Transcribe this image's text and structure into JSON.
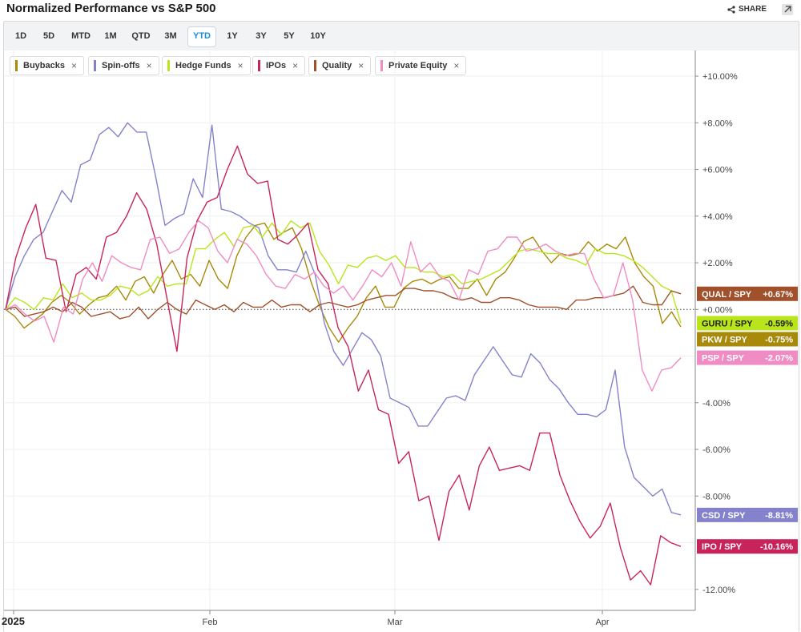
{
  "header": {
    "title": "Normalized Performance vs S&P 500",
    "share_label": "SHARE"
  },
  "ranges": [
    "1D",
    "5D",
    "MTD",
    "1M",
    "QTD",
    "3M",
    "YTD",
    "1Y",
    "3Y",
    "5Y",
    "10Y"
  ],
  "active_range": "YTD",
  "colors": {
    "buybacks": "#a8890a",
    "spinoffs": "#8482cc",
    "hedge": "#b8e61b",
    "ipos": "#c8245b",
    "quality": "#a0502a",
    "pe": "#f08cc4"
  },
  "chart_data": {
    "type": "line",
    "x_labels": [
      "2025",
      "Feb",
      "Mar",
      "Apr"
    ],
    "y_ticks": [
      "+10.00%",
      "+8.00%",
      "+6.00%",
      "+4.00%",
      "+2.00%",
      "+0.00%",
      "-4.00%",
      "-6.00%",
      "-8.00%",
      "-12.00%"
    ],
    "y_tick_values": [
      10,
      8,
      6,
      4,
      2,
      0,
      -4,
      -6,
      -8,
      -12
    ],
    "ylim": [
      -12.9,
      11.1
    ],
    "grid": true,
    "zero_line": "dotted",
    "series": [
      {
        "name": "Buybacks",
        "key": "buybacks",
        "tag": "PKW / SPY",
        "last_label": "-0.75%",
        "values": [
          0,
          -0.3,
          -0.8,
          -0.5,
          -0.2,
          0.3,
          0.6,
          0.3,
          -0.2,
          0.2,
          0.5,
          0.6,
          1.0,
          0.4,
          1.2,
          1.4,
          0.7,
          1.5,
          2.1,
          1.3,
          1.5,
          1.0,
          2.1,
          1.3,
          0.9,
          2.3,
          3.1,
          3.6,
          3.7,
          3.0,
          3.3,
          3.5,
          2.6,
          1.2,
          0.1,
          -0.8,
          -1.4,
          -0.8,
          -0.3,
          0.5,
          1.0,
          0.1,
          0.1,
          0.9,
          1.2,
          1.3,
          1.1,
          1.3,
          1.4,
          0.9,
          0.9,
          1.3,
          0.6,
          1.3,
          1.6,
          2.2,
          2.9,
          3.1,
          2.5,
          2.0,
          2.4,
          2.3,
          2.4,
          2.9,
          2.5,
          2.8,
          2.6,
          3.1,
          2.0,
          1.4,
          1.0,
          -0.6,
          -0.1,
          -0.75
        ]
      },
      {
        "name": "Spin-offs",
        "key": "spinoffs",
        "tag": "CSD / SPY",
        "last_label": "-8.81%",
        "values": [
          0,
          1.4,
          2.3,
          3.0,
          3.3,
          4.2,
          5.1,
          4.6,
          6.2,
          6.4,
          7.5,
          7.8,
          7.4,
          8.0,
          7.6,
          7.6,
          5.7,
          3.6,
          3.9,
          4.1,
          5.6,
          4.8,
          7.9,
          4.3,
          4.2,
          4.0,
          3.7,
          3.5,
          2.3,
          1.7,
          1.7,
          1.6,
          2.5,
          1.5,
          -0.6,
          -1.8,
          -2.4,
          -1.7,
          -1.0,
          -1.3,
          -2.0,
          -3.8,
          -4.0,
          -4.2,
          -5.0,
          -5.0,
          -4.4,
          -3.8,
          -3.7,
          -3.9,
          -2.8,
          -2.2,
          -1.6,
          -2.2,
          -2.8,
          -2.9,
          -1.9,
          -2.3,
          -3.0,
          -3.4,
          -4.0,
          -4.5,
          -4.5,
          -4.6,
          -4.3,
          -2.6,
          -5.9,
          -7.2,
          -7.6,
          -8.0,
          -7.7,
          -8.7,
          -8.81
        ]
      },
      {
        "name": "Hedge Funds",
        "key": "hedge",
        "tag": "GURU / SPY",
        "last_label": "-0.59%",
        "values": [
          0,
          0.5,
          0.3,
          0.0,
          0.5,
          0.4,
          1.1,
          0.5,
          0.7,
          0.4,
          0.4,
          0.6,
          1.0,
          0.9,
          0.6,
          0.8,
          1.4,
          1.0,
          1.1,
          1.1,
          2.6,
          2.6,
          3.0,
          3.3,
          2.7,
          3.5,
          3.6,
          3.1,
          3.7,
          3.2,
          3.8,
          3.5,
          3.7,
          2.5,
          1.9,
          1.1,
          1.9,
          1.8,
          2.2,
          2.3,
          2.1,
          2.3,
          1.8,
          1.8,
          1.6,
          1.6,
          1.4,
          1.5,
          1.1,
          1.2,
          1.3,
          1.5,
          1.7,
          2.1,
          2.5,
          2.6,
          2.5,
          2.4,
          2.4,
          2.2,
          2.1,
          1.9,
          2.6,
          2.4,
          2.4,
          2.3,
          2.1,
          1.8,
          1.4,
          1.0,
          0.8,
          -0.59
        ]
      },
      {
        "name": "IPOs",
        "key": "ipos",
        "tag": "IPO / SPY",
        "last_label": "-10.16%",
        "values": [
          0,
          2.2,
          3.5,
          4.5,
          2.2,
          2.1,
          -0.1,
          1.5,
          1.8,
          1.3,
          3.1,
          3.3,
          4.0,
          5.0,
          4.3,
          2.8,
          0.5,
          -1.8,
          2.2,
          3.8,
          4.6,
          4.8,
          6.0,
          7.0,
          5.8,
          5.4,
          5.5,
          3.0,
          2.8,
          3.2,
          3.7,
          1.7,
          1.1,
          -0.8,
          -1.6,
          -3.5,
          -2.6,
          -4.3,
          -4.5,
          -6.6,
          -6.1,
          -8.2,
          -8.0,
          -9.9,
          -7.8,
          -7.1,
          -8.6,
          -6.7,
          -5.9,
          -6.9,
          -6.8,
          -6.7,
          -6.9,
          -5.3,
          -5.3,
          -7.1,
          -8.2,
          -9.1,
          -9.8,
          -9.3,
          -8.3,
          -10.2,
          -11.6,
          -11.2,
          -11.8,
          -9.7,
          -10.0,
          -10.16
        ]
      },
      {
        "name": "Quality",
        "key": "quality",
        "tag": "QUAL / SPY",
        "last_label": "+0.67%",
        "values": [
          0,
          0.1,
          -0.3,
          -0.2,
          -0.1,
          0.1,
          -0.1,
          0.3,
          0.1,
          -0.3,
          -0.2,
          -0.1,
          -0.4,
          -0.3,
          0.1,
          -0.4,
          0.0,
          0.3,
          0.0,
          -0.2,
          0.4,
          0.2,
          0.0,
          0.2,
          -0.1,
          0.3,
          0.1,
          0.1,
          0.4,
          0.1,
          0.2,
          0.2,
          -0.1,
          0.2,
          0.3,
          0.2,
          0.1,
          0.2,
          0.4,
          0.5,
          0.6,
          0.6,
          0.9,
          0.9,
          0.8,
          0.8,
          0.7,
          0.5,
          0.4,
          0.5,
          0.3,
          0.3,
          0.5,
          0.5,
          0.4,
          0.2,
          0.1,
          0.1,
          0.1,
          0.0,
          0.4,
          0.4,
          0.5,
          0.5,
          0.6,
          0.7,
          1.0,
          0.3,
          0.2,
          0.2,
          0.8,
          0.67
        ]
      },
      {
        "name": "Private Equity",
        "key": "pe",
        "tag": "PSP / SPY",
        "last_label": "-2.07%",
        "values": [
          0,
          0.2,
          -0.2,
          -0.5,
          -0.3,
          -1.4,
          0.1,
          -0.2,
          1.3,
          2.0,
          1.2,
          2.3,
          2.0,
          1.8,
          1.7,
          3.0,
          3.1,
          2.4,
          2.6,
          3.3,
          3.8,
          3.5,
          2.5,
          2.0,
          3.0,
          2.8,
          2.3,
          1.5,
          1.0,
          0.9,
          1.5,
          1.3,
          1.6,
          1.0,
          0.7,
          1.0,
          0.4,
          1.0,
          1.7,
          1.4,
          2.0,
          1.0,
          2.9,
          1.6,
          2.0,
          1.4,
          1.2,
          0.4,
          1.7,
          1.5,
          2.5,
          2.6,
          3.1,
          3.1,
          2.5,
          2.6,
          2.8,
          2.5,
          2.3,
          2.4,
          2.4,
          1.3,
          0.5,
          0.6,
          2.0,
          0.4,
          -2.6,
          -3.5,
          -2.6,
          -2.5,
          -2.07
        ]
      }
    ]
  }
}
